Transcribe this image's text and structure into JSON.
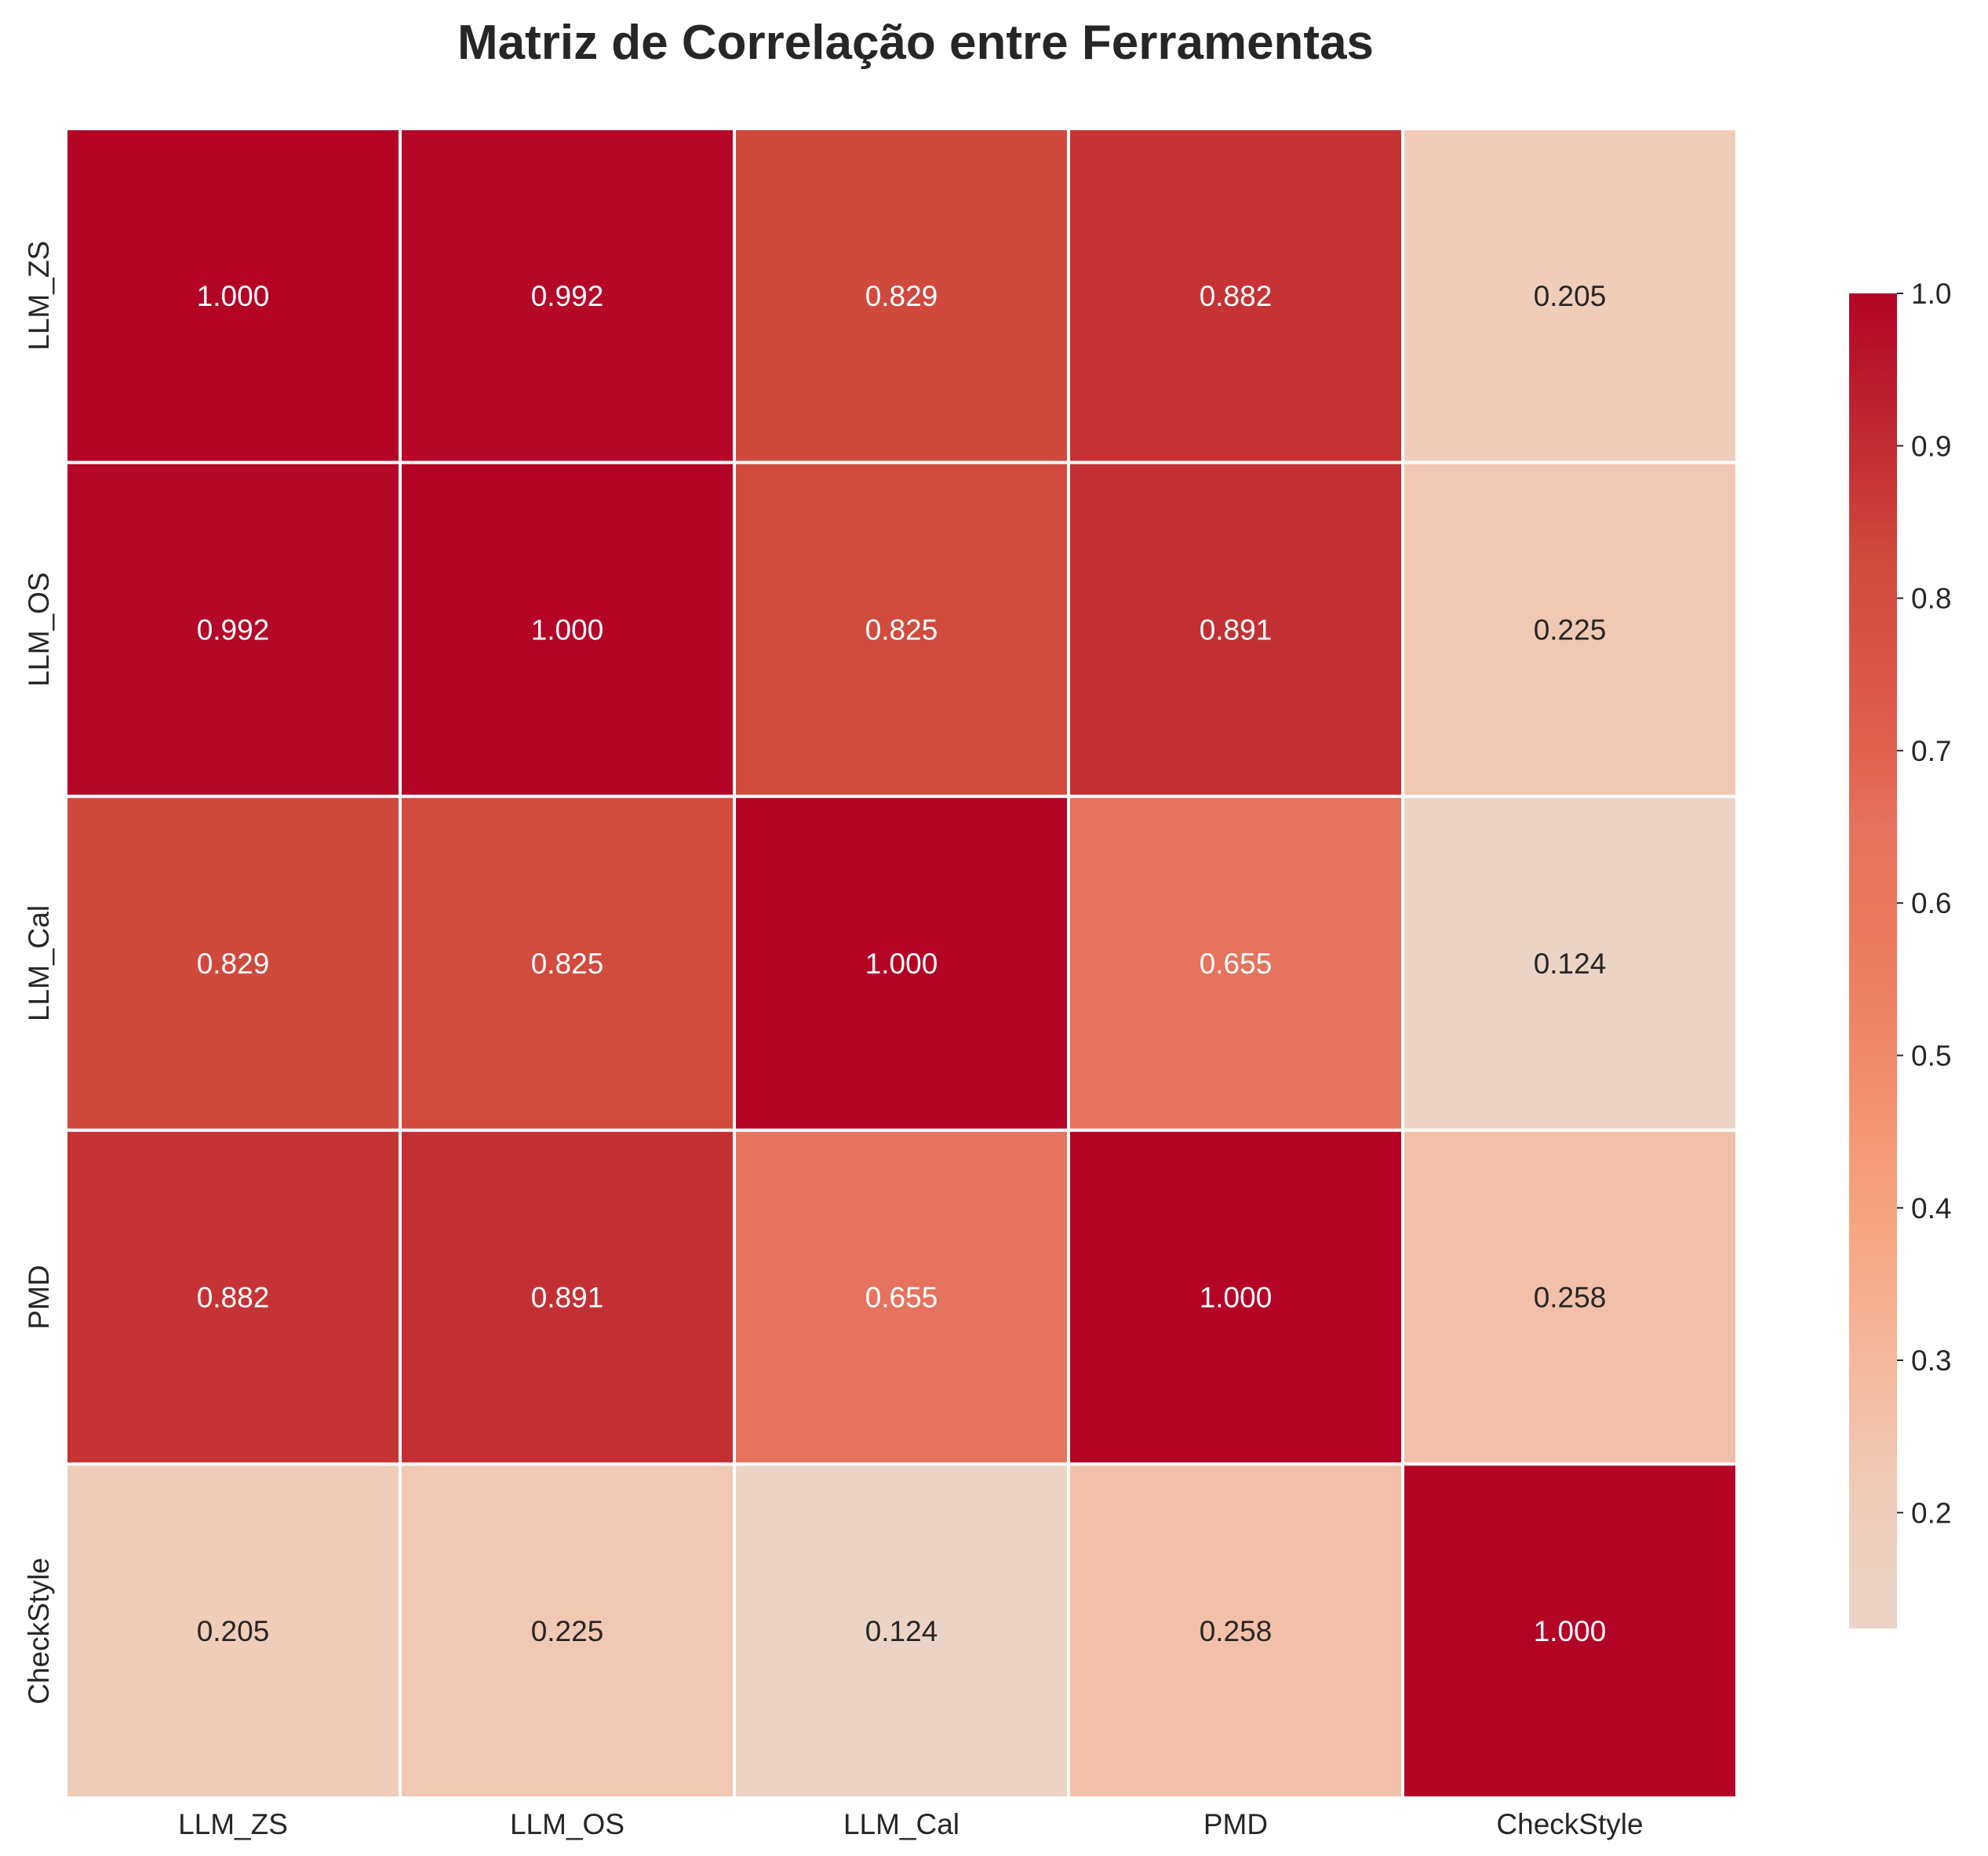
{
  "chart_data": {
    "type": "heatmap",
    "title": "Matriz de Correlação entre Ferramentas",
    "x_labels": [
      "LLM_ZS",
      "LLM_OS",
      "LLM_Cal",
      "PMD",
      "CheckStyle"
    ],
    "y_labels": [
      "LLM_ZS",
      "LLM_OS",
      "LLM_Cal",
      "PMD",
      "CheckStyle"
    ],
    "matrix": [
      [
        1.0,
        0.992,
        0.829,
        0.882,
        0.205
      ],
      [
        0.992,
        1.0,
        0.825,
        0.891,
        0.225
      ],
      [
        0.829,
        0.825,
        1.0,
        0.655,
        0.124
      ],
      [
        0.882,
        0.891,
        0.655,
        1.0,
        0.258
      ],
      [
        0.205,
        0.225,
        0.124,
        0.258,
        1.0
      ]
    ],
    "value_format": "0.000",
    "colormap": "coolwarm",
    "colorbar": {
      "range": [
        0.124,
        1.0
      ],
      "ticks": [
        1.0,
        0.9,
        0.8,
        0.7,
        0.6,
        0.5,
        0.4,
        0.3,
        0.2
      ],
      "tick_labels": [
        "1.0",
        "0.9",
        "0.8",
        "0.7",
        "0.6",
        "0.5",
        "0.4",
        "0.3",
        "0.2"
      ]
    },
    "grid": false,
    "colors": {
      "cell_border": "#ffffff",
      "text_dark": "#262626",
      "text_light": "#ffffff"
    }
  }
}
